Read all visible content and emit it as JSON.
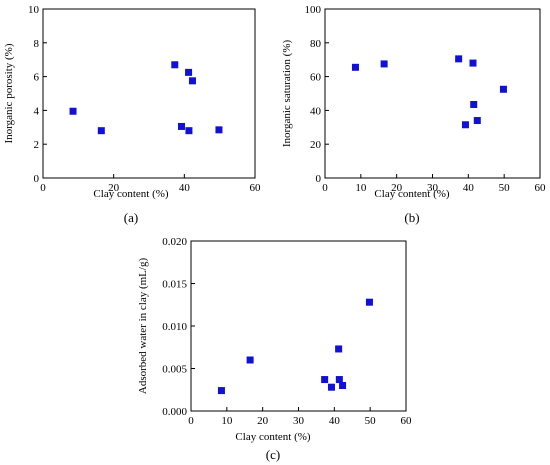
{
  "figure": {
    "marker_color": "#1010d8",
    "axis_color": "#000000"
  },
  "chart_data": [
    {
      "type": "scatter",
      "panel_label": "(a)",
      "xlabel": "Clay content (%)",
      "ylabel": "Inorganic porosity (%)",
      "xlim": [
        0,
        60
      ],
      "ylim": [
        0,
        10
      ],
      "xticks": [
        0,
        20,
        40,
        60
      ],
      "yticks": [
        0,
        2,
        4,
        6,
        8,
        10
      ],
      "xtick_labels": [
        "0",
        "20",
        "40",
        "60"
      ],
      "ytick_labels": [
        "0",
        "2",
        "4",
        "6",
        "8",
        "10"
      ],
      "x": [
        8.5,
        16.5,
        37.3,
        39.2,
        41.2,
        41.3,
        42.3,
        49.8
      ],
      "y": [
        3.95,
        2.8,
        6.7,
        3.05,
        6.25,
        2.8,
        5.75,
        2.85
      ],
      "grid": false
    },
    {
      "type": "scatter",
      "panel_label": "(b)",
      "xlabel": "Clay content (%)",
      "ylabel": "Inorganic saturation (%)",
      "xlim": [
        0,
        60
      ],
      "ylim": [
        0,
        100
      ],
      "xticks": [
        0,
        10,
        20,
        30,
        40,
        50,
        60
      ],
      "yticks": [
        0,
        20,
        40,
        60,
        80,
        100
      ],
      "xtick_labels": [
        "0",
        "10",
        "20",
        "30",
        "40",
        "50",
        "60"
      ],
      "ytick_labels": [
        "0",
        "20",
        "40",
        "60",
        "80",
        "100"
      ],
      "x": [
        8.5,
        16.5,
        37.3,
        39.2,
        41.3,
        41.5,
        42.5,
        49.8
      ],
      "y": [
        65.5,
        67.5,
        70.5,
        31.5,
        68.0,
        43.5,
        34.0,
        52.5
      ],
      "grid": false
    },
    {
      "type": "scatter",
      "panel_label": "(c)",
      "xlabel": "Clay content (%)",
      "ylabel": "Adsorbed water in clay  (mL/g)",
      "xlim": [
        0,
        60
      ],
      "ylim": [
        0,
        0.02
      ],
      "xticks": [
        0,
        10,
        20,
        30,
        40,
        50,
        60
      ],
      "yticks": [
        0,
        0.005,
        0.01,
        0.015,
        0.02
      ],
      "xtick_labels": [
        "0",
        "10",
        "20",
        "30",
        "40",
        "50",
        "60"
      ],
      "ytick_labels": [
        "0.000",
        "0.005",
        "0.010",
        "0.015",
        "0.020"
      ],
      "x": [
        8.5,
        16.5,
        37.3,
        39.2,
        41.2,
        41.4,
        42.3,
        49.8
      ],
      "y": [
        0.0024,
        0.006,
        0.0037,
        0.0028,
        0.0073,
        0.0037,
        0.003,
        0.0128
      ],
      "grid": false
    }
  ]
}
